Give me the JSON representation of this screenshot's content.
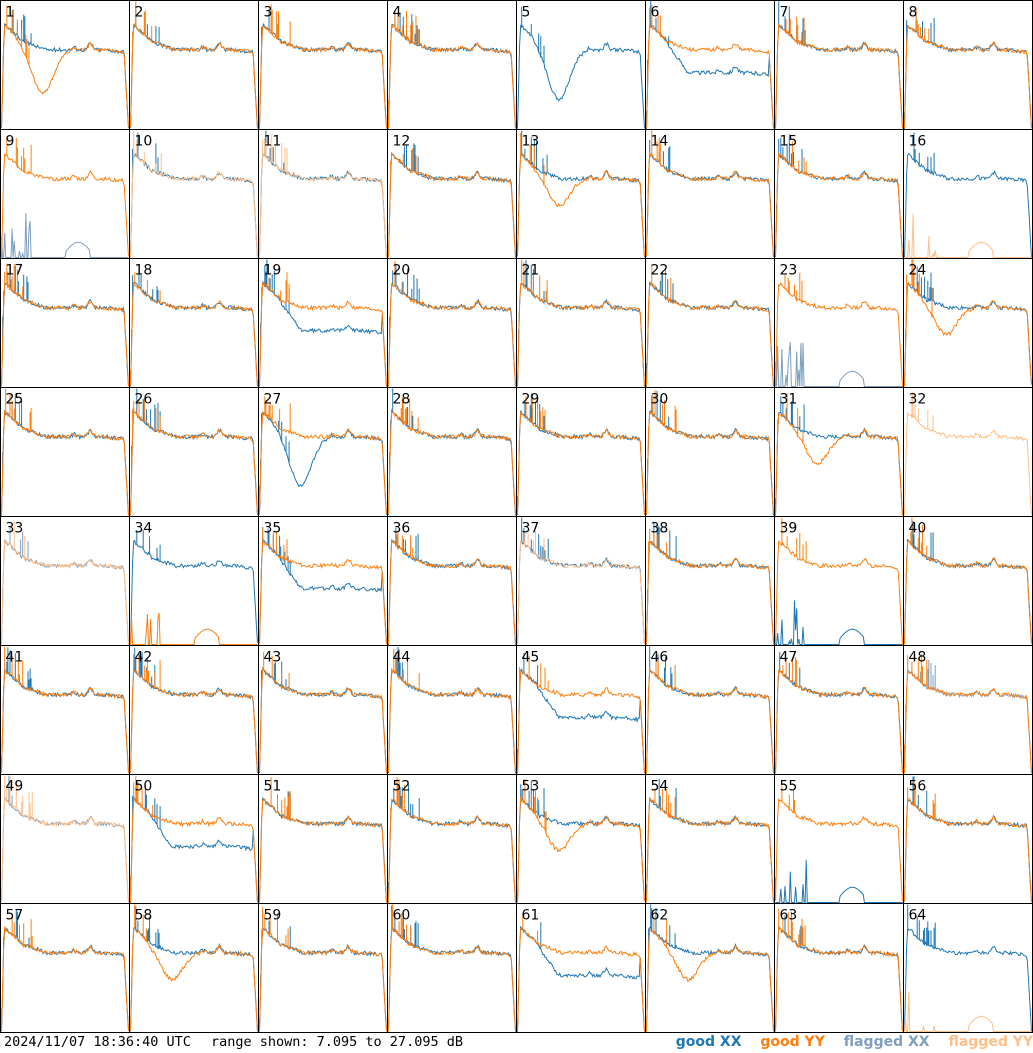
{
  "footer": {
    "timestamp": "2024/11/07 18:36:40 UTC",
    "range": "range shown: 7.095 to 27.095 dB"
  },
  "legend": {
    "good_xx": "good XX",
    "good_yy": "good YY",
    "flagged_xx": "flagged XX",
    "flagged_yy": "flagged YY"
  },
  "colors": {
    "good_xx": "#1f77b4",
    "good_yy": "#ff7f0e",
    "flagged_xx": "#7f9fbf",
    "flagged_yy": "#ffbf8a"
  },
  "chart_data": {
    "type": "line",
    "layout": "8x8 small multiples, one panel per antenna",
    "y_range_db": [
      7.095,
      27.095
    ],
    "panels": [
      {
        "label": "1",
        "xx": "good",
        "yy": "good",
        "shape": "dip"
      },
      {
        "label": "2",
        "xx": "good",
        "yy": "good",
        "shape": "normal"
      },
      {
        "label": "3",
        "xx": "good",
        "yy": "good",
        "shape": "normal"
      },
      {
        "label": "4",
        "xx": "good",
        "yy": "good",
        "shape": "normal"
      },
      {
        "label": "5",
        "xx": "good",
        "yy": "none",
        "shape": "deepdip"
      },
      {
        "label": "6",
        "xx": "good",
        "yy": "good",
        "shape": "xxlow"
      },
      {
        "label": "7",
        "xx": "good",
        "yy": "good",
        "shape": "normal"
      },
      {
        "label": "8",
        "xx": "good",
        "yy": "good",
        "shape": "normal"
      },
      {
        "label": "9",
        "xx": "flagged-low",
        "yy": "good",
        "shape": "normal"
      },
      {
        "label": "10",
        "xx": "good",
        "yy": "flagged",
        "shape": "normal"
      },
      {
        "label": "11",
        "xx": "good",
        "yy": "flagged",
        "shape": "normal"
      },
      {
        "label": "12",
        "xx": "good",
        "yy": "good",
        "shape": "normal"
      },
      {
        "label": "13",
        "xx": "good",
        "yy": "good",
        "shape": "ydip"
      },
      {
        "label": "14",
        "xx": "good",
        "yy": "good",
        "shape": "normal"
      },
      {
        "label": "15",
        "xx": "good",
        "yy": "good",
        "shape": "normal"
      },
      {
        "label": "16",
        "xx": "good",
        "yy": "flagged-low",
        "shape": "normal"
      },
      {
        "label": "17",
        "xx": "good",
        "yy": "good",
        "shape": "normal"
      },
      {
        "label": "18",
        "xx": "good",
        "yy": "good",
        "shape": "normal"
      },
      {
        "label": "19",
        "xx": "good",
        "yy": "good",
        "shape": "xxlow"
      },
      {
        "label": "20",
        "xx": "good",
        "yy": "good",
        "shape": "normal"
      },
      {
        "label": "21",
        "xx": "good",
        "yy": "good",
        "shape": "normal"
      },
      {
        "label": "22",
        "xx": "good",
        "yy": "good",
        "shape": "normal"
      },
      {
        "label": "23",
        "xx": "flagged-low",
        "yy": "good",
        "shape": "normal"
      },
      {
        "label": "24",
        "xx": "good",
        "yy": "good",
        "shape": "ydip"
      },
      {
        "label": "25",
        "xx": "good",
        "yy": "good",
        "shape": "normal"
      },
      {
        "label": "26",
        "xx": "good",
        "yy": "good",
        "shape": "normal"
      },
      {
        "label": "27",
        "xx": "good",
        "yy": "good",
        "shape": "deepdip"
      },
      {
        "label": "28",
        "xx": "good",
        "yy": "good",
        "shape": "normal"
      },
      {
        "label": "29",
        "xx": "good",
        "yy": "good",
        "shape": "normal"
      },
      {
        "label": "30",
        "xx": "good",
        "yy": "good",
        "shape": "normal"
      },
      {
        "label": "31",
        "xx": "good",
        "yy": "good",
        "shape": "ydip"
      },
      {
        "label": "32",
        "xx": "none",
        "yy": "flagged",
        "shape": "normal"
      },
      {
        "label": "33",
        "xx": "flagged",
        "yy": "flagged",
        "shape": "normal"
      },
      {
        "label": "34",
        "xx": "good",
        "yy": "good-low",
        "shape": "normal"
      },
      {
        "label": "35",
        "xx": "good",
        "yy": "good",
        "shape": "xxlow"
      },
      {
        "label": "36",
        "xx": "good",
        "yy": "good",
        "shape": "normal"
      },
      {
        "label": "37",
        "xx": "good",
        "yy": "flagged",
        "shape": "normal"
      },
      {
        "label": "38",
        "xx": "good",
        "yy": "good",
        "shape": "normal"
      },
      {
        "label": "39",
        "xx": "good-low",
        "yy": "good",
        "shape": "normal"
      },
      {
        "label": "40",
        "xx": "good",
        "yy": "good",
        "shape": "normal"
      },
      {
        "label": "41",
        "xx": "good",
        "yy": "good",
        "shape": "normal"
      },
      {
        "label": "42",
        "xx": "good",
        "yy": "good",
        "shape": "normal"
      },
      {
        "label": "43",
        "xx": "good",
        "yy": "good",
        "shape": "normal"
      },
      {
        "label": "44",
        "xx": "good",
        "yy": "good",
        "shape": "normal"
      },
      {
        "label": "45",
        "xx": "good",
        "yy": "good",
        "shape": "xxlow"
      },
      {
        "label": "46",
        "xx": "good",
        "yy": "good",
        "shape": "normal"
      },
      {
        "label": "47",
        "xx": "good",
        "yy": "good",
        "shape": "normal"
      },
      {
        "label": "48",
        "xx": "flagged",
        "yy": "good",
        "shape": "normal"
      },
      {
        "label": "49",
        "xx": "flagged",
        "yy": "flagged",
        "shape": "normal"
      },
      {
        "label": "50",
        "xx": "good",
        "yy": "good",
        "shape": "xxlow"
      },
      {
        "label": "51",
        "xx": "good",
        "yy": "good",
        "shape": "normal"
      },
      {
        "label": "52",
        "xx": "good",
        "yy": "good",
        "shape": "normal"
      },
      {
        "label": "53",
        "xx": "good",
        "yy": "good",
        "shape": "ydip"
      },
      {
        "label": "54",
        "xx": "good",
        "yy": "good",
        "shape": "normal"
      },
      {
        "label": "55",
        "xx": "good-low",
        "yy": "good",
        "shape": "normal"
      },
      {
        "label": "56",
        "xx": "good",
        "yy": "good",
        "shape": "normal"
      },
      {
        "label": "57",
        "xx": "good",
        "yy": "good",
        "shape": "normal"
      },
      {
        "label": "58",
        "xx": "good",
        "yy": "good",
        "shape": "ydip"
      },
      {
        "label": "59",
        "xx": "good",
        "yy": "good",
        "shape": "normal"
      },
      {
        "label": "60",
        "xx": "good",
        "yy": "good",
        "shape": "normal"
      },
      {
        "label": "61",
        "xx": "good",
        "yy": "good",
        "shape": "xxlow"
      },
      {
        "label": "62",
        "xx": "good",
        "yy": "good",
        "shape": "ydip"
      },
      {
        "label": "63",
        "xx": "good",
        "yy": "good",
        "shape": "normal"
      },
      {
        "label": "64",
        "xx": "good",
        "yy": "flagged-low",
        "shape": "normal"
      }
    ]
  }
}
